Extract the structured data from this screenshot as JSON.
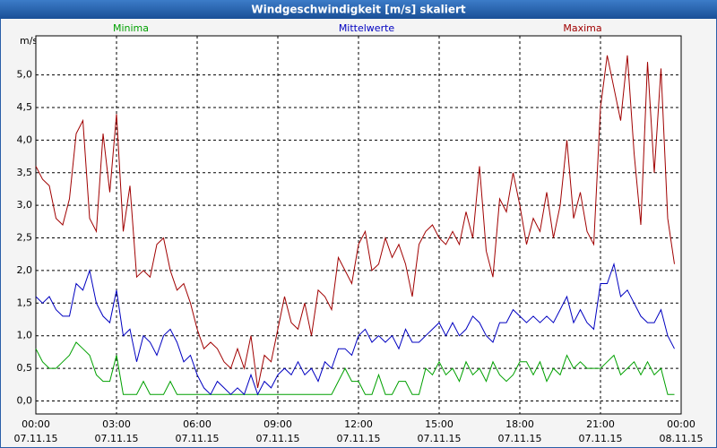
{
  "chart_data": {
    "type": "line",
    "title": "Windgeschwindigkeit [m/s] skaliert",
    "ylabel": "m/s",
    "x": [
      0,
      0.25,
      0.5,
      0.75,
      1,
      1.25,
      1.5,
      1.75,
      2,
      2.25,
      2.5,
      2.75,
      3,
      3.25,
      3.5,
      3.75,
      4,
      4.25,
      4.5,
      4.75,
      5,
      5.25,
      5.5,
      5.75,
      6,
      6.25,
      6.5,
      6.75,
      7,
      7.25,
      7.5,
      7.75,
      8,
      8.25,
      8.5,
      8.75,
      9,
      9.25,
      9.5,
      9.75,
      10,
      10.25,
      10.5,
      10.75,
      11,
      11.25,
      11.5,
      11.75,
      12,
      12.25,
      12.5,
      12.75,
      13,
      13.25,
      13.5,
      13.75,
      14,
      14.25,
      14.5,
      14.75,
      15,
      15.25,
      15.5,
      15.75,
      16,
      16.25,
      16.5,
      16.75,
      17,
      17.25,
      17.5,
      17.75,
      18,
      18.25,
      18.5,
      18.75,
      19,
      19.25,
      19.5,
      19.75,
      20,
      20.25,
      20.5,
      20.75,
      21,
      21.25,
      21.5,
      21.75,
      22,
      22.25,
      22.5,
      22.75,
      23,
      23.25,
      23.5,
      23.75
    ],
    "series": [
      {
        "name": "Minima",
        "color": "#00a000",
        "values": [
          0.8,
          0.6,
          0.5,
          0.5,
          0.6,
          0.7,
          0.9,
          0.8,
          0.7,
          0.4,
          0.3,
          0.3,
          0.7,
          0.1,
          0.1,
          0.1,
          0.3,
          0.1,
          0.1,
          0.1,
          0.3,
          0.1,
          0.1,
          0.1,
          0.1,
          0.1,
          0.1,
          0.1,
          0.1,
          0.1,
          0.1,
          0.1,
          0.1,
          0.1,
          0.1,
          0.1,
          0.1,
          0.1,
          0.1,
          0.1,
          0.1,
          0.1,
          0.1,
          0.1,
          0.1,
          0.3,
          0.5,
          0.3,
          0.3,
          0.1,
          0.1,
          0.4,
          0.1,
          0.1,
          0.3,
          0.3,
          0.1,
          0.1,
          0.5,
          0.4,
          0.6,
          0.4,
          0.5,
          0.3,
          0.6,
          0.4,
          0.5,
          0.3,
          0.6,
          0.4,
          0.3,
          0.4,
          0.6,
          0.6,
          0.4,
          0.6,
          0.3,
          0.5,
          0.4,
          0.7,
          0.5,
          0.6,
          0.5,
          0.5,
          0.5,
          0.6,
          0.7,
          0.4,
          0.5,
          0.6,
          0.4,
          0.6,
          0.4,
          0.5,
          0.1,
          0.1
        ]
      },
      {
        "name": "Mittelwerte",
        "color": "#0000c0",
        "values": [
          1.6,
          1.5,
          1.6,
          1.4,
          1.3,
          1.3,
          1.8,
          1.7,
          2.0,
          1.5,
          1.3,
          1.2,
          1.7,
          1.0,
          1.1,
          0.6,
          1.0,
          0.9,
          0.7,
          1.0,
          1.1,
          0.9,
          0.6,
          0.7,
          0.4,
          0.2,
          0.1,
          0.3,
          0.2,
          0.1,
          0.2,
          0.1,
          0.4,
          0.1,
          0.3,
          0.2,
          0.4,
          0.5,
          0.4,
          0.6,
          0.4,
          0.5,
          0.3,
          0.6,
          0.5,
          0.8,
          0.8,
          0.7,
          1.0,
          1.1,
          0.9,
          1.0,
          0.9,
          1.0,
          0.8,
          1.1,
          0.9,
          0.9,
          1.0,
          1.1,
          1.2,
          1.0,
          1.2,
          1.0,
          1.1,
          1.3,
          1.2,
          1.0,
          0.9,
          1.2,
          1.2,
          1.4,
          1.3,
          1.2,
          1.3,
          1.2,
          1.3,
          1.2,
          1.4,
          1.6,
          1.2,
          1.4,
          1.2,
          1.1,
          1.8,
          1.8,
          2.1,
          1.6,
          1.7,
          1.5,
          1.3,
          1.2,
          1.2,
          1.4,
          1.0,
          0.8
        ]
      },
      {
        "name": "Maxima",
        "color": "#a00000",
        "values": [
          3.6,
          3.4,
          3.3,
          2.8,
          2.7,
          3.1,
          4.1,
          4.3,
          2.8,
          2.6,
          4.1,
          3.2,
          4.4,
          2.6,
          3.3,
          1.9,
          2.0,
          1.9,
          2.4,
          2.5,
          2.0,
          1.7,
          1.8,
          1.5,
          1.1,
          0.8,
          0.9,
          0.8,
          0.6,
          0.5,
          0.8,
          0.5,
          1.0,
          0.2,
          0.7,
          0.6,
          1.1,
          1.6,
          1.2,
          1.1,
          1.5,
          1.0,
          1.7,
          1.6,
          1.4,
          2.2,
          2.0,
          1.8,
          2.4,
          2.6,
          2.0,
          2.1,
          2.5,
          2.2,
          2.4,
          2.1,
          1.6,
          2.4,
          2.6,
          2.7,
          2.5,
          2.4,
          2.6,
          2.4,
          2.9,
          2.5,
          3.6,
          2.3,
          1.9,
          3.1,
          2.9,
          3.5,
          3.0,
          2.4,
          2.8,
          2.6,
          3.2,
          2.5,
          3.0,
          4.0,
          2.8,
          3.2,
          2.6,
          2.4,
          4.5,
          5.3,
          4.8,
          4.3,
          5.3,
          3.8,
          2.7,
          5.2,
          3.5,
          5.1,
          2.8,
          2.1
        ]
      }
    ],
    "xlim": [
      0,
      24
    ],
    "xticks": [
      {
        "value": 0,
        "label": "00:00"
      },
      {
        "value": 3,
        "label": "03:00"
      },
      {
        "value": 6,
        "label": "06:00"
      },
      {
        "value": 9,
        "label": "09:00"
      },
      {
        "value": 12,
        "label": "12:00"
      },
      {
        "value": 15,
        "label": "15:00"
      },
      {
        "value": 18,
        "label": "18:00"
      },
      {
        "value": 21,
        "label": "21:00"
      },
      {
        "value": 24,
        "label": "00:00"
      }
    ],
    "xtick_dates": [
      "07.11.15",
      "07.11.15",
      "07.11.15",
      "07.11.15",
      "07.11.15",
      "07.11.15",
      "07.11.15",
      "07.11.15",
      "08.11.15"
    ],
    "ylim": [
      -0.2,
      5.6
    ],
    "yticks": [
      {
        "value": 0,
        "label": "0,0"
      },
      {
        "value": 0.5,
        "label": "0,5"
      },
      {
        "value": 1,
        "label": "1,0"
      },
      {
        "value": 1.5,
        "label": "1,5"
      },
      {
        "value": 2,
        "label": "2,0"
      },
      {
        "value": 2.5,
        "label": "2,5"
      },
      {
        "value": 3,
        "label": "3,0"
      },
      {
        "value": 3.5,
        "label": "3,5"
      },
      {
        "value": 4,
        "label": "4,0"
      },
      {
        "value": 4.5,
        "label": "4,5"
      },
      {
        "value": 5,
        "label": "5,0"
      }
    ],
    "grid": true
  }
}
